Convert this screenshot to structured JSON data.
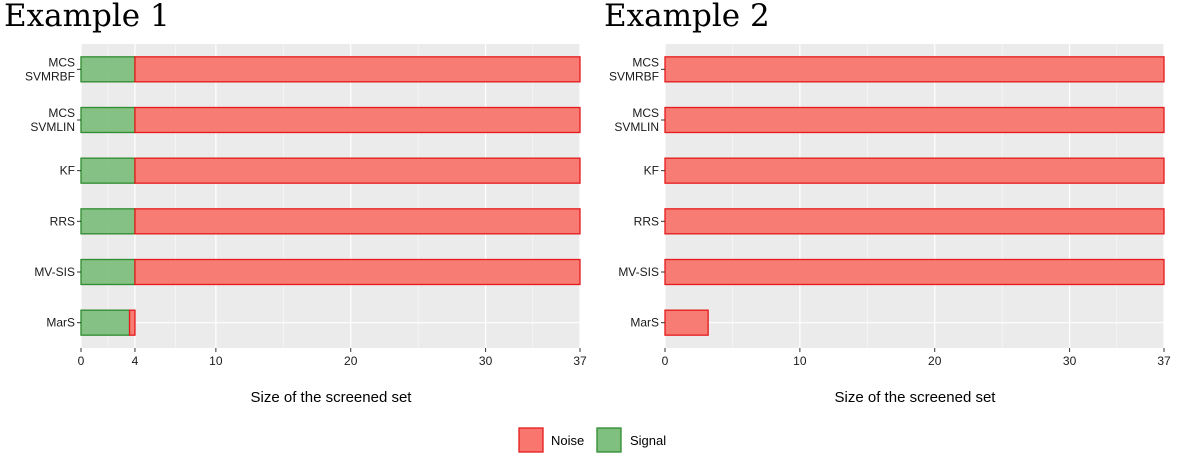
{
  "colors": {
    "noise_fill": "#F8766D",
    "noise_stroke": "#E41A1C",
    "signal_fill": "#7FBF7F",
    "signal_stroke": "#2E8B2E",
    "panel_bg": "#EBEBEB",
    "grid": "#FFFFFF"
  },
  "legend": {
    "items": [
      {
        "label": "Noise",
        "key": "noise"
      },
      {
        "label": "Signal",
        "key": "signal"
      }
    ]
  },
  "chart_data": [
    {
      "type": "bar",
      "orientation": "horizontal",
      "stacked": true,
      "title": "Example 1",
      "xlabel": "Size of the screened set",
      "ylabel": "",
      "xlim": [
        0,
        37
      ],
      "x_ticks": [
        0,
        4,
        10,
        20,
        30,
        37
      ],
      "grid": true,
      "legend_position": "bottom",
      "categories": [
        [
          "MCS",
          "SVMRBF"
        ],
        [
          "MCS",
          "SVMLIN"
        ],
        [
          "KF"
        ],
        [
          "RRS"
        ],
        [
          "MV-SIS"
        ],
        [
          "MarS"
        ]
      ],
      "series": [
        {
          "name": "Signal",
          "key": "signal",
          "values": [
            4,
            4,
            4,
            4,
            4,
            3.6
          ]
        },
        {
          "name": "Noise",
          "key": "noise",
          "values": [
            33,
            33,
            33,
            33,
            33,
            0.4
          ]
        }
      ]
    },
    {
      "type": "bar",
      "orientation": "horizontal",
      "stacked": true,
      "title": "Example 2",
      "xlabel": "Size of the screened set",
      "ylabel": "",
      "xlim": [
        0,
        37
      ],
      "x_ticks": [
        0,
        10,
        20,
        30,
        37
      ],
      "grid": true,
      "legend_position": "bottom",
      "categories": [
        [
          "MCS",
          "SVMRBF"
        ],
        [
          "MCS",
          "SVMLIN"
        ],
        [
          "KF"
        ],
        [
          "RRS"
        ],
        [
          "MV-SIS"
        ],
        [
          "MarS"
        ]
      ],
      "series": [
        {
          "name": "Signal",
          "key": "signal",
          "values": [
            0,
            0,
            0,
            0,
            0,
            0
          ]
        },
        {
          "name": "Noise",
          "key": "noise",
          "values": [
            37,
            37,
            37,
            37,
            37,
            3.2
          ]
        }
      ]
    }
  ]
}
